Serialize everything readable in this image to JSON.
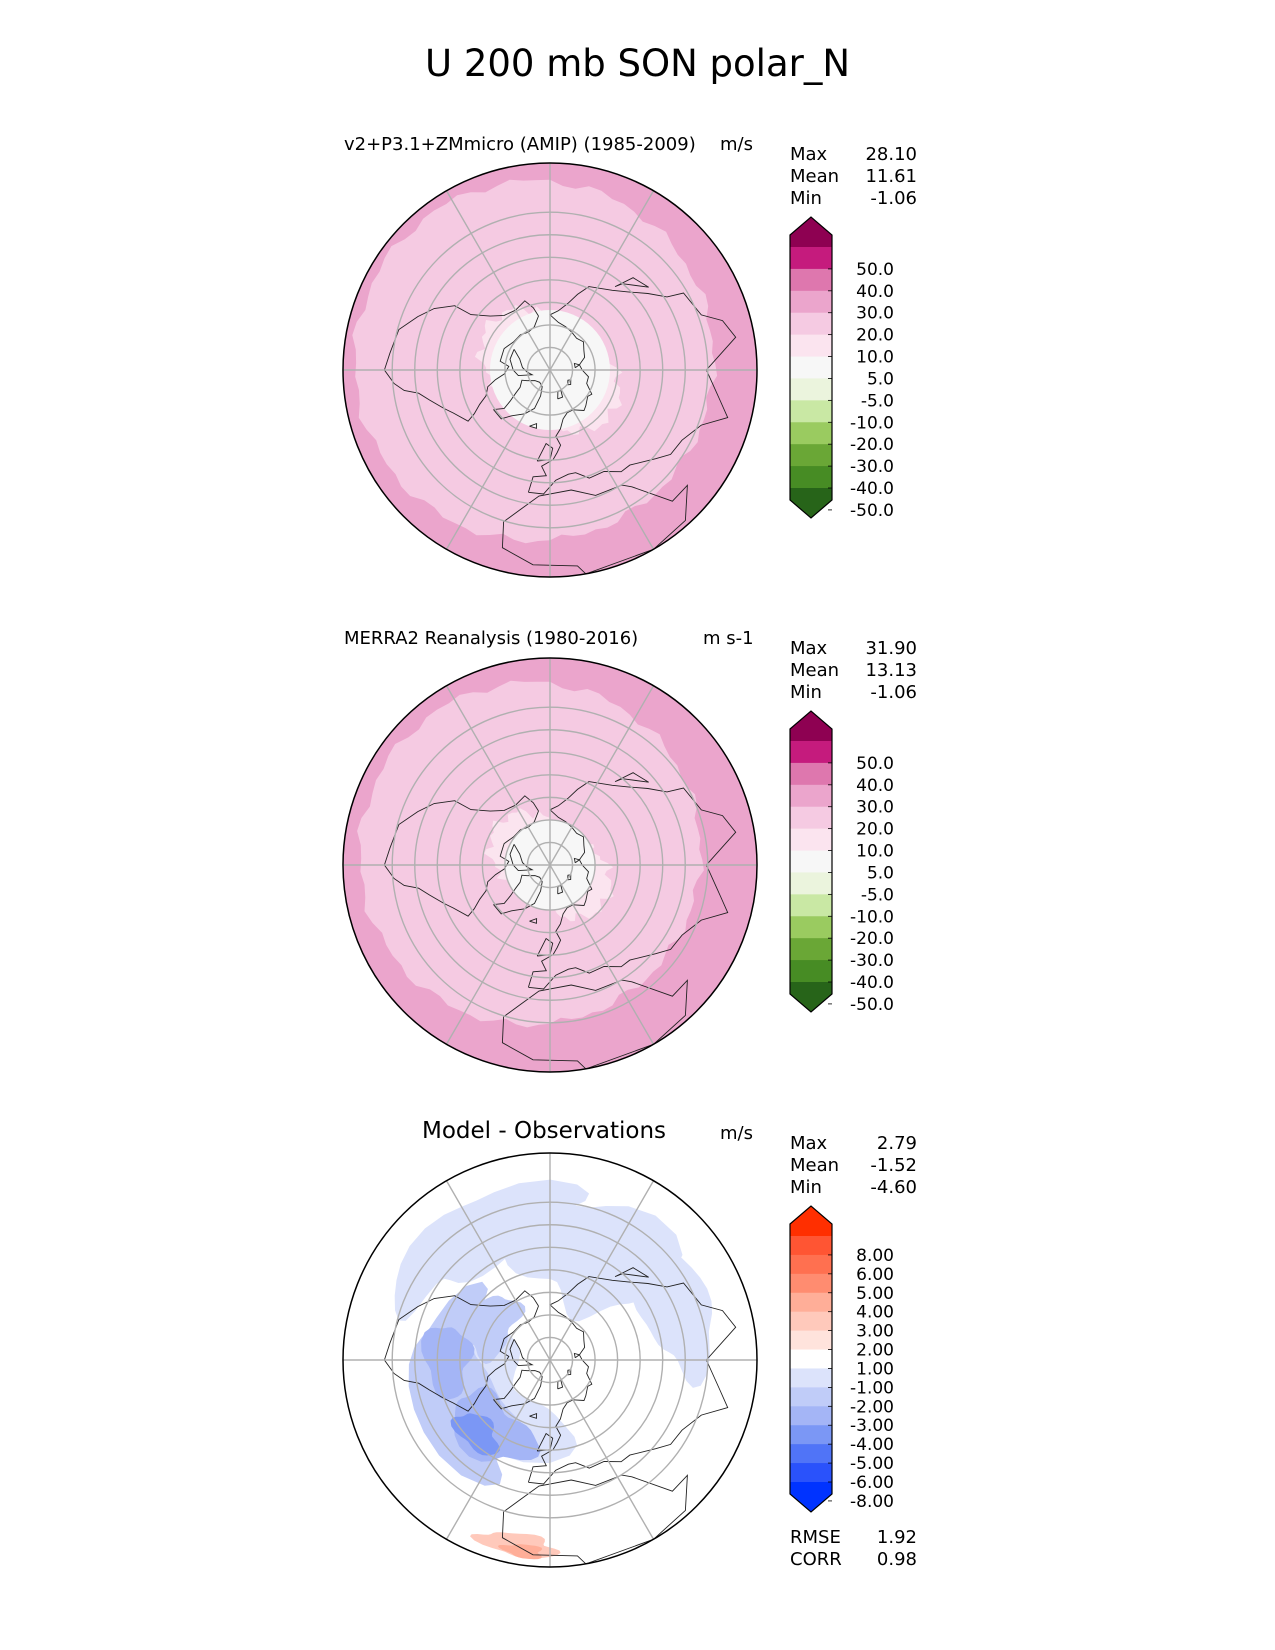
{
  "title": "U 200 mb SON polar_N",
  "chart_data": [
    {
      "type": "heatmap",
      "projection": "north-polar-stereographic",
      "title": "v2+P3.1+ZMmicro (AMIP) (1985-2009)",
      "units": "m/s",
      "stats": {
        "max_label": "Max",
        "max": "28.10",
        "mean_label": "Mean",
        "mean": "11.61",
        "min_label": "Min",
        "min": "-1.06"
      },
      "colorbar": {
        "ticks": [
          "50.0",
          "40.0",
          "30.0",
          "20.0",
          "10.0",
          "5.0",
          "-5.0",
          "-10.0",
          "-20.0",
          "-30.0",
          "-40.0",
          "-50.0"
        ],
        "colors": [
          "#8e0152",
          "#c51b7d",
          "#de77ae",
          "#eba5cc",
          "#f5cae2",
          "#fbe4ef",
          "#f7f7f7",
          "#ebf4dd",
          "#c9e8a4",
          "#9acb60",
          "#6aa736",
          "#478c24",
          "#276419"
        ]
      }
    },
    {
      "type": "heatmap",
      "projection": "north-polar-stereographic",
      "title": "MERRA2 Reanalysis (1980-2016)",
      "units": "m s-1",
      "stats": {
        "max_label": "Max",
        "max": "31.90",
        "mean_label": "Mean",
        "mean": "13.13",
        "min_label": "Min",
        "min": "-1.06"
      },
      "colorbar": {
        "ticks": [
          "50.0",
          "40.0",
          "30.0",
          "20.0",
          "10.0",
          "5.0",
          "-5.0",
          "-10.0",
          "-20.0",
          "-30.0",
          "-40.0",
          "-50.0"
        ],
        "colors": [
          "#8e0152",
          "#c51b7d",
          "#de77ae",
          "#eba5cc",
          "#f5cae2",
          "#fbe4ef",
          "#f7f7f7",
          "#ebf4dd",
          "#c9e8a4",
          "#9acb60",
          "#6aa736",
          "#478c24",
          "#276419"
        ]
      }
    },
    {
      "type": "heatmap",
      "projection": "north-polar-stereographic",
      "title": "Model - Observations",
      "units": "m/s",
      "stats": {
        "max_label": "Max",
        "max": "2.79",
        "mean_label": "Mean",
        "mean": "-1.52",
        "min_label": "Min",
        "min": "-4.60"
      },
      "colorbar": {
        "ticks": [
          "8.00",
          "6.00",
          "5.00",
          "4.00",
          "3.00",
          "2.00",
          "1.00",
          "-1.00",
          "-2.00",
          "-3.00",
          "-4.00",
          "-5.00",
          "-6.00",
          "-8.00"
        ],
        "colors": [
          "#ff2f00",
          "#ff5533",
          "#ff7050",
          "#ff8c70",
          "#ffae98",
          "#ffc9bb",
          "#ffe3dc",
          "#ffffff",
          "#dce3fb",
          "#c0ccf8",
          "#a4b5f6",
          "#7b97f5",
          "#5074f7",
          "#2a52fb",
          "#0033ff"
        ]
      },
      "metrics": {
        "rmse_label": "RMSE",
        "rmse": "1.92",
        "corr_label": "CORR",
        "corr": "0.98"
      }
    }
  ]
}
